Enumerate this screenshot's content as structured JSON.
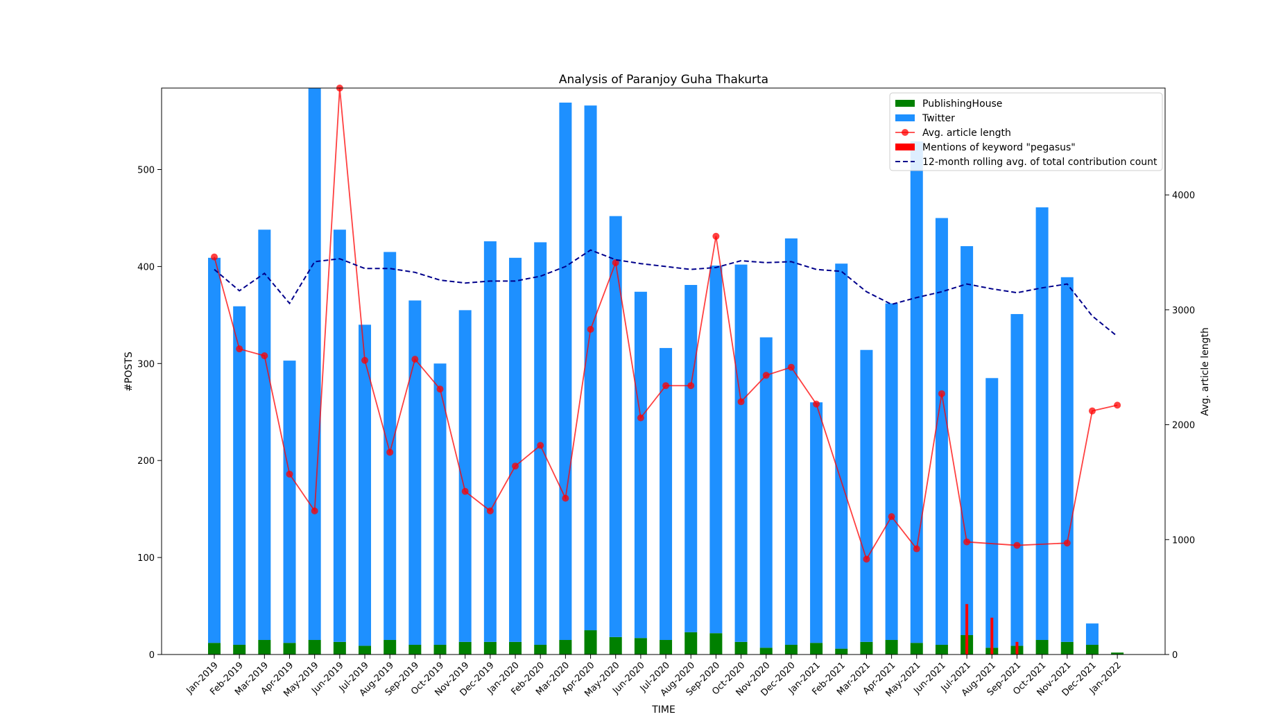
{
  "chart_data": {
    "type": "bar",
    "title": "Analysis of Paranjoy Guha Thakurta",
    "xlabel": "TIME",
    "ylabel": "#POSTS",
    "y2label": "Avg. article length",
    "ylim": [
      0,
      584
    ],
    "y2lim": [
      0,
      4930
    ],
    "yticks": [
      0,
      100,
      200,
      300,
      400,
      500
    ],
    "y2ticks": [
      0,
      1000,
      2000,
      3000,
      4000
    ],
    "legend_position": "top-right",
    "grid": false,
    "categories": [
      "Jan-2019",
      "Feb-2019",
      "Mar-2019",
      "Apr-2019",
      "May-2019",
      "Jun-2019",
      "Jul-2019",
      "Aug-2019",
      "Sep-2019",
      "Oct-2019",
      "Nov-2019",
      "Dec-2019",
      "Jan-2020",
      "Feb-2020",
      "Mar-2020",
      "Apr-2020",
      "May-2020",
      "Jun-2020",
      "Jul-2020",
      "Aug-2020",
      "Sep-2020",
      "Oct-2020",
      "Nov-2020",
      "Dec-2020",
      "Jan-2021",
      "Feb-2021",
      "Mar-2021",
      "Apr-2021",
      "May-2021",
      "Jun-2021",
      "Jul-2021",
      "Aug-2021",
      "Sep-2021",
      "Oct-2021",
      "Nov-2021",
      "Dec-2021",
      "Jan-2022"
    ],
    "series": [
      {
        "name": "PublishingHouse",
        "kind": "bar",
        "color": "#008000",
        "values": [
          12,
          10,
          15,
          12,
          15,
          13,
          9,
          15,
          10,
          10,
          13,
          13,
          13,
          10,
          15,
          25,
          18,
          17,
          15,
          23,
          22,
          13,
          7,
          10,
          12,
          6,
          13,
          15,
          12,
          10,
          20,
          7,
          9,
          15,
          13,
          10,
          2
        ]
      },
      {
        "name": "Twitter",
        "kind": "bar",
        "color": "#1e90ff",
        "values": [
          397,
          349,
          423,
          291,
          569,
          425,
          331,
          400,
          355,
          290,
          342,
          413,
          396,
          415,
          554,
          541,
          434,
          357,
          301,
          358,
          379,
          389,
          320,
          419,
          248,
          397,
          301,
          347,
          517,
          440,
          401,
          278,
          342,
          446,
          376,
          22,
          0
        ]
      },
      {
        "name": "Avg. article length",
        "kind": "line-marker",
        "axis": "right",
        "color": "#ff0000",
        "values": [
          3460,
          2660,
          2600,
          1570,
          1250,
          4930,
          2560,
          1760,
          2570,
          2310,
          1420,
          1250,
          1640,
          1820,
          1360,
          2830,
          3410,
          2060,
          2340,
          2340,
          3640,
          2200,
          2430,
          2500,
          2180,
          null,
          830,
          1200,
          920,
          2270,
          980,
          null,
          950,
          null,
          970,
          2120,
          2170
        ]
      },
      {
        "name": "Mentions of keyword \"pegasus\"",
        "kind": "bar",
        "color": "#ff0000",
        "values": [
          0,
          0,
          0,
          0,
          0,
          0,
          0,
          0,
          0,
          0,
          0,
          0,
          0,
          0,
          0,
          0,
          0,
          0,
          0,
          0,
          0,
          0,
          0,
          0,
          0,
          0,
          0,
          0,
          0,
          0,
          52,
          38,
          13,
          0,
          0,
          0,
          0
        ]
      },
      {
        "name": "12-month rolling avg. of total contribution count",
        "kind": "line-dashed",
        "color": "#00008b",
        "values": [
          397,
          375,
          393,
          362,
          405,
          408,
          398,
          398,
          394,
          386,
          383,
          385,
          385,
          390,
          400,
          417,
          407,
          403,
          400,
          397,
          399,
          406,
          404,
          405,
          397,
          395,
          374,
          361,
          368,
          374,
          382,
          377,
          373,
          378,
          382,
          349,
          328
        ]
      }
    ]
  }
}
